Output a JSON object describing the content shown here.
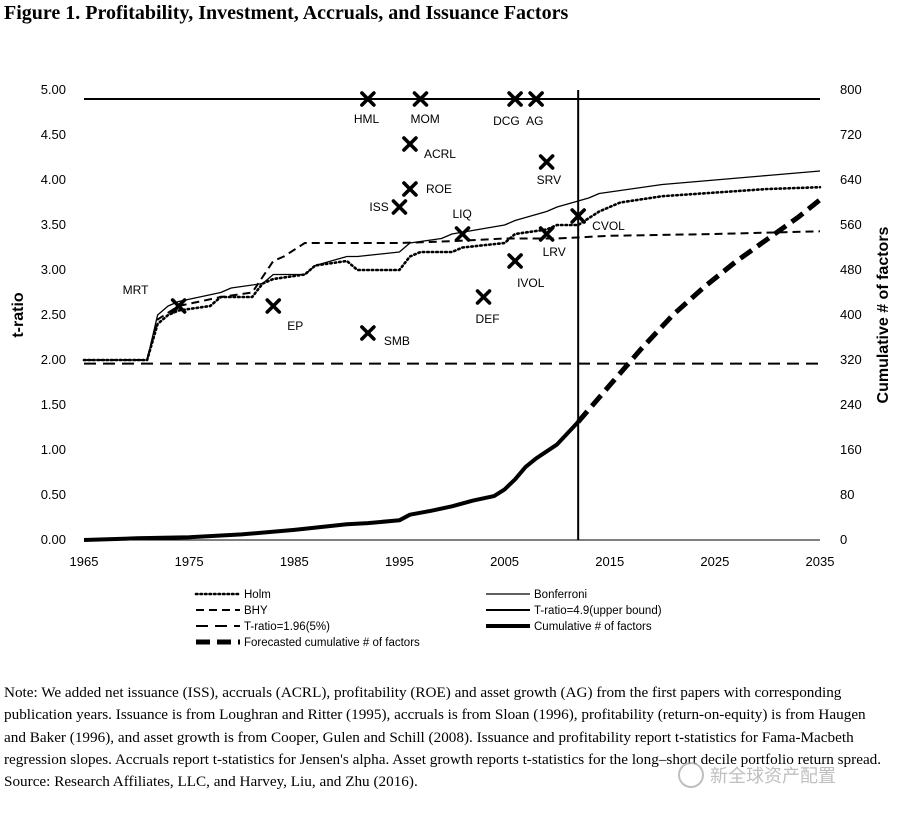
{
  "figure_title": "Figure 1. Profitability, Investment, Accruals, and Issuance Factors",
  "note": "Note: We added net issuance (ISS), accruals (ACRL), profitability (ROE) and asset growth (AG) from the first papers with corresponding publication years. Issuance is from Loughran and Ritter (1995), accruals is from Sloan (1996), profitability (return-on-equity) is from Haugen and Baker (1996), and asset growth is from Cooper, Gulen and Schill (2008). Issuance and profitability report t-statistics for Fama-Macbeth regression slopes. Accruals report t-statistics for Jensen's alpha. Asset growth reports t-statistics for the long–short decile portfolio return spread.",
  "source": "Source: Research Affiliates, LLC, and Harvey, Liu, and Zhu (2016).",
  "watermark": "新全球资产配置",
  "chart_data": {
    "type": "line",
    "title": "",
    "xlabel": "",
    "ylabel": "t-ratio",
    "y2label": "Cumulative # of factors",
    "xlim": [
      1965,
      2035
    ],
    "ylim": [
      0,
      5
    ],
    "y2lim": [
      0,
      800
    ],
    "xticks": [
      "1965",
      "1975",
      "1985",
      "1995",
      "2005",
      "2015",
      "2025",
      "2035"
    ],
    "yticks": [
      "0.00",
      "0.50",
      "1.00",
      "1.50",
      "2.00",
      "2.50",
      "3.00",
      "3.50",
      "4.00",
      "4.50",
      "5.00"
    ],
    "y2ticks": [
      "0",
      "80",
      "160",
      "240",
      "320",
      "400",
      "480",
      "560",
      "640",
      "720",
      "800"
    ],
    "vertical_line_x": 2012,
    "grid": false,
    "legend": [
      {
        "label": "Holm",
        "style": "dotted"
      },
      {
        "label": "Bonferroni",
        "style": "thin-solid"
      },
      {
        "label": "BHY",
        "style": "dashed"
      },
      {
        "label": "T-ratio=4.9(upper bound)",
        "style": "solid"
      },
      {
        "label": "T-ratio=1.96(5%)",
        "style": "long-dashed"
      },
      {
        "label": "Cumulative # of factors",
        "style": "thick-solid"
      },
      {
        "label": "Forecasted cumulative # of factors",
        "style": "thick-dashed"
      }
    ],
    "series": [
      {
        "name": "Holm",
        "axis": "left",
        "style": "dotted",
        "x": [
          1965,
          1971,
          1972,
          1973,
          1974,
          1977,
          1978,
          1981,
          1982,
          1983,
          1986,
          1987,
          1990,
          1991,
          1995,
          1996,
          1997,
          2000,
          2001,
          2005,
          2006,
          2009,
          2010,
          2012,
          2014,
          2016,
          2020,
          2025,
          2030,
          2035
        ],
        "y": [
          2.0,
          2.0,
          2.4,
          2.5,
          2.55,
          2.6,
          2.7,
          2.7,
          2.85,
          2.9,
          2.95,
          3.05,
          3.1,
          3.0,
          3.0,
          3.15,
          3.2,
          3.2,
          3.25,
          3.3,
          3.4,
          3.45,
          3.5,
          3.5,
          3.65,
          3.75,
          3.82,
          3.86,
          3.9,
          3.92
        ]
      },
      {
        "name": "Bonferroni",
        "axis": "left",
        "style": "thin-solid",
        "x": [
          1965,
          1971,
          1972,
          1973,
          1974,
          1978,
          1979,
          1982,
          1983,
          1986,
          1987,
          1990,
          1991,
          1995,
          1996,
          1999,
          2000,
          2005,
          2006,
          2009,
          2010,
          2013,
          2014,
          2020,
          2025,
          2030,
          2035
        ],
        "y": [
          2.0,
          2.0,
          2.5,
          2.6,
          2.65,
          2.75,
          2.8,
          2.85,
          2.95,
          2.95,
          3.05,
          3.15,
          3.15,
          3.2,
          3.3,
          3.35,
          3.4,
          3.5,
          3.55,
          3.65,
          3.7,
          3.8,
          3.85,
          3.95,
          4.0,
          4.05,
          4.1
        ]
      },
      {
        "name": "BHY",
        "axis": "left",
        "style": "dashed",
        "x": [
          1965,
          1971,
          1972,
          1974,
          1978,
          1981,
          1983,
          1984,
          1986,
          1988,
          1995,
          2000,
          2005,
          2010,
          2015,
          2025,
          2035
        ],
        "y": [
          2.0,
          2.0,
          2.45,
          2.6,
          2.7,
          2.75,
          3.1,
          3.15,
          3.3,
          3.3,
          3.3,
          3.32,
          3.35,
          3.35,
          3.38,
          3.4,
          3.43
        ]
      },
      {
        "name": "T-ratio=4.9(upper bound)",
        "axis": "left",
        "style": "solid",
        "x": [
          1965,
          2035
        ],
        "y": [
          4.9,
          4.9
        ]
      },
      {
        "name": "T-ratio=1.96(5%)",
        "axis": "left",
        "style": "long-dashed",
        "x": [
          1965,
          2035
        ],
        "y": [
          1.96,
          1.96
        ]
      },
      {
        "name": "Cumulative # of factors",
        "axis": "right",
        "style": "thick-solid",
        "x": [
          1965,
          1970,
          1975,
          1980,
          1985,
          1990,
          1992,
          1995,
          1996,
          1998,
          2000,
          2002,
          2004,
          2005,
          2006,
          2007,
          2008,
          2010,
          2012
        ],
        "y": [
          0,
          3,
          5,
          10,
          18,
          28,
          30,
          35,
          45,
          52,
          60,
          70,
          78,
          90,
          108,
          130,
          145,
          170,
          210
        ]
      },
      {
        "name": "Forecasted cumulative # of factors",
        "axis": "right",
        "style": "thick-dashed",
        "x": [
          2012,
          2015,
          2018,
          2021,
          2024,
          2027,
          2030,
          2033,
          2035
        ],
        "y": [
          210,
          275,
          340,
          400,
          450,
          495,
          535,
          575,
          605
        ]
      }
    ],
    "points": [
      {
        "label": "MRT",
        "x": 1974,
        "y": 2.6
      },
      {
        "label": "EP",
        "x": 1983,
        "y": 2.6
      },
      {
        "label": "SMB",
        "x": 1992,
        "y": 2.3
      },
      {
        "label": "HML",
        "x": 1992,
        "y": 4.9
      },
      {
        "label": "MOM",
        "x": 1997,
        "y": 4.9
      },
      {
        "label": "ACRL",
        "x": 1996,
        "y": 4.4
      },
      {
        "label": "ROE",
        "x": 1996,
        "y": 3.9
      },
      {
        "label": "ISS",
        "x": 1995,
        "y": 3.7
      },
      {
        "label": "LIQ",
        "x": 2001,
        "y": 3.4
      },
      {
        "label": "DEF",
        "x": 2003,
        "y": 2.7
      },
      {
        "label": "DCG",
        "x": 2006,
        "y": 4.9
      },
      {
        "label": "AG",
        "x": 2008,
        "y": 4.9
      },
      {
        "label": "IVOL",
        "x": 2006,
        "y": 3.1
      },
      {
        "label": "SRV",
        "x": 2009,
        "y": 4.2
      },
      {
        "label": "LRV",
        "x": 2009,
        "y": 3.4
      },
      {
        "label": "CVOL",
        "x": 2012,
        "y": 3.6
      }
    ]
  }
}
